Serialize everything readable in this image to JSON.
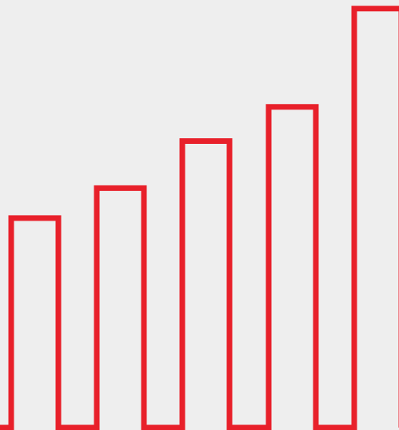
{
  "colors": {
    "background": "#eeeeee",
    "stroke": "#e8202a"
  },
  "icon": "bar-chart-outline-icon",
  "bars": {
    "relative_heights": [
      0.49,
      0.56,
      0.67,
      0.75,
      0.98
    ]
  }
}
